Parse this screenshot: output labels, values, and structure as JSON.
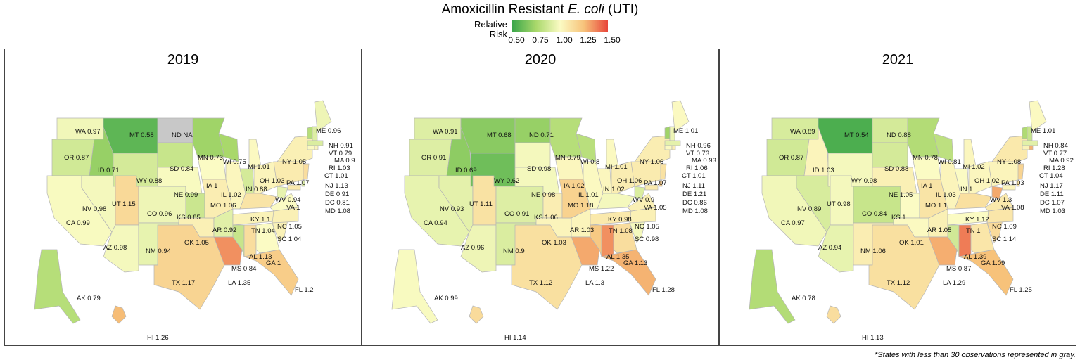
{
  "title_prefix": "Amoxicillin Resistant ",
  "title_italic": "E. coli",
  "title_suffix": " (UTI)",
  "legend": {
    "label_line1": "Relative",
    "label_line2": "Risk",
    "ticks": [
      "0.50",
      "0.75",
      "1.00",
      "1.25",
      "1.50"
    ],
    "colors": [
      "#3aa64a",
      "#a9d86b",
      "#fbfbc4",
      "#f7c27a",
      "#e8453a"
    ],
    "na_color": "#c8c8c8"
  },
  "footnote": "*States with less than 30 observations represented in gray.",
  "panels": [
    {
      "year": "2019",
      "values": {
        "WA": 0.97,
        "OR": 0.87,
        "ID": 0.71,
        "MT": 0.58,
        "ND": "NA",
        "SD": 0.84,
        "WY": 0.88,
        "NV": 0.98,
        "UT": 1.15,
        "CA": 0.99,
        "CO": 0.96,
        "NE": 0.99,
        "KS": 0.85,
        "AZ": 0.98,
        "NM": 0.94,
        "OK": 1.05,
        "TX": 1.17,
        "MN": 0.73,
        "IA": 1,
        "MO": 1.06,
        "AR": 0.92,
        "LA": 1.35,
        "WI": 0.75,
        "IL": 1.02,
        "MI": 1.01,
        "IN": 0.88,
        "OH": 1.03,
        "KY": 1.1,
        "TN": 1.04,
        "MS": 0.84,
        "AL": 1.13,
        "GA": 1,
        "FL": 1.2,
        "SC": 1.04,
        "NC": 1.05,
        "VA": 1,
        "WV": 0.94,
        "PA": 1.07,
        "NY": 1.05,
        "ME": 0.96,
        "NH": 0.91,
        "VT": 0.79,
        "MA": 0.9,
        "RI": 1.03,
        "CT": 1.01,
        "NJ": 1.13,
        "DE": 0.91,
        "DC": 0.81,
        "MD": 1.08,
        "AK": 0.79,
        "HI": 1.26
      }
    },
    {
      "year": "2020",
      "values": {
        "WA": 0.91,
        "OR": 0.91,
        "ID": 0.69,
        "MT": 0.68,
        "ND": 0.71,
        "SD": 0.98,
        "WY": 0.62,
        "NV": 0.93,
        "UT": 1.11,
        "CA": 0.94,
        "CO": 0.91,
        "NE": 0.98,
        "KS": 1.06,
        "AZ": 0.96,
        "NM": 0.9,
        "OK": 1.03,
        "TX": 1.12,
        "MN": 0.79,
        "IA": 1.02,
        "MO": 1.18,
        "AR": 1.03,
        "LA": 1.3,
        "WI": 0.8,
        "IL": 1.01,
        "MI": 1.01,
        "IN": 1.02,
        "OH": 1.06,
        "KY": 0.98,
        "TN": 1.08,
        "MS": 1.22,
        "AL": 1.35,
        "GA": 1.13,
        "FL": 1.28,
        "SC": 0.98,
        "NC": 1.05,
        "VA": 1.05,
        "WV": 0.9,
        "PA": 1.07,
        "NY": 1.06,
        "ME": 1.01,
        "NH": 0.96,
        "VT": 0.73,
        "MA": 0.93,
        "RI": 1.06,
        "CT": 1.01,
        "NJ": 1.11,
        "DE": 1.21,
        "DC": 0.86,
        "MD": 1.08,
        "AK": 0.99,
        "HI": 1.14
      }
    },
    {
      "year": "2021",
      "values": {
        "WA": 0.89,
        "OR": 0.87,
        "ID": 1.03,
        "MT": 0.54,
        "ND": 0.88,
        "SD": 0.88,
        "WY": 0.98,
        "NV": 0.89,
        "UT": 0.98,
        "CA": 0.97,
        "CO": 0.84,
        "NE": 1.05,
        "KS": 1,
        "AZ": 0.94,
        "NM": 1.06,
        "OK": 1.01,
        "TX": 1.12,
        "MN": 0.78,
        "IA": 1,
        "MO": 1.1,
        "AR": 1.05,
        "LA": 1.29,
        "WI": 0.81,
        "IL": 1.03,
        "MI": 1.02,
        "IN": 1,
        "OH": 1.02,
        "KY": 1.12,
        "TN": 1,
        "MS": 0.87,
        "AL": 1.39,
        "GA": 1.09,
        "FL": 1.25,
        "SC": 1.14,
        "NC": 1.09,
        "VA": 1.08,
        "WV": 1.3,
        "PA": 1.03,
        "NY": 1.08,
        "ME": 1.01,
        "NH": 0.84,
        "VT": 0.77,
        "MA": 0.92,
        "RI": 1.28,
        "CT": 1.04,
        "NJ": 1.17,
        "DE": 1.11,
        "DC": 1.07,
        "MD": 1.03,
        "AK": 0.78,
        "HI": 1.13
      }
    }
  ]
}
